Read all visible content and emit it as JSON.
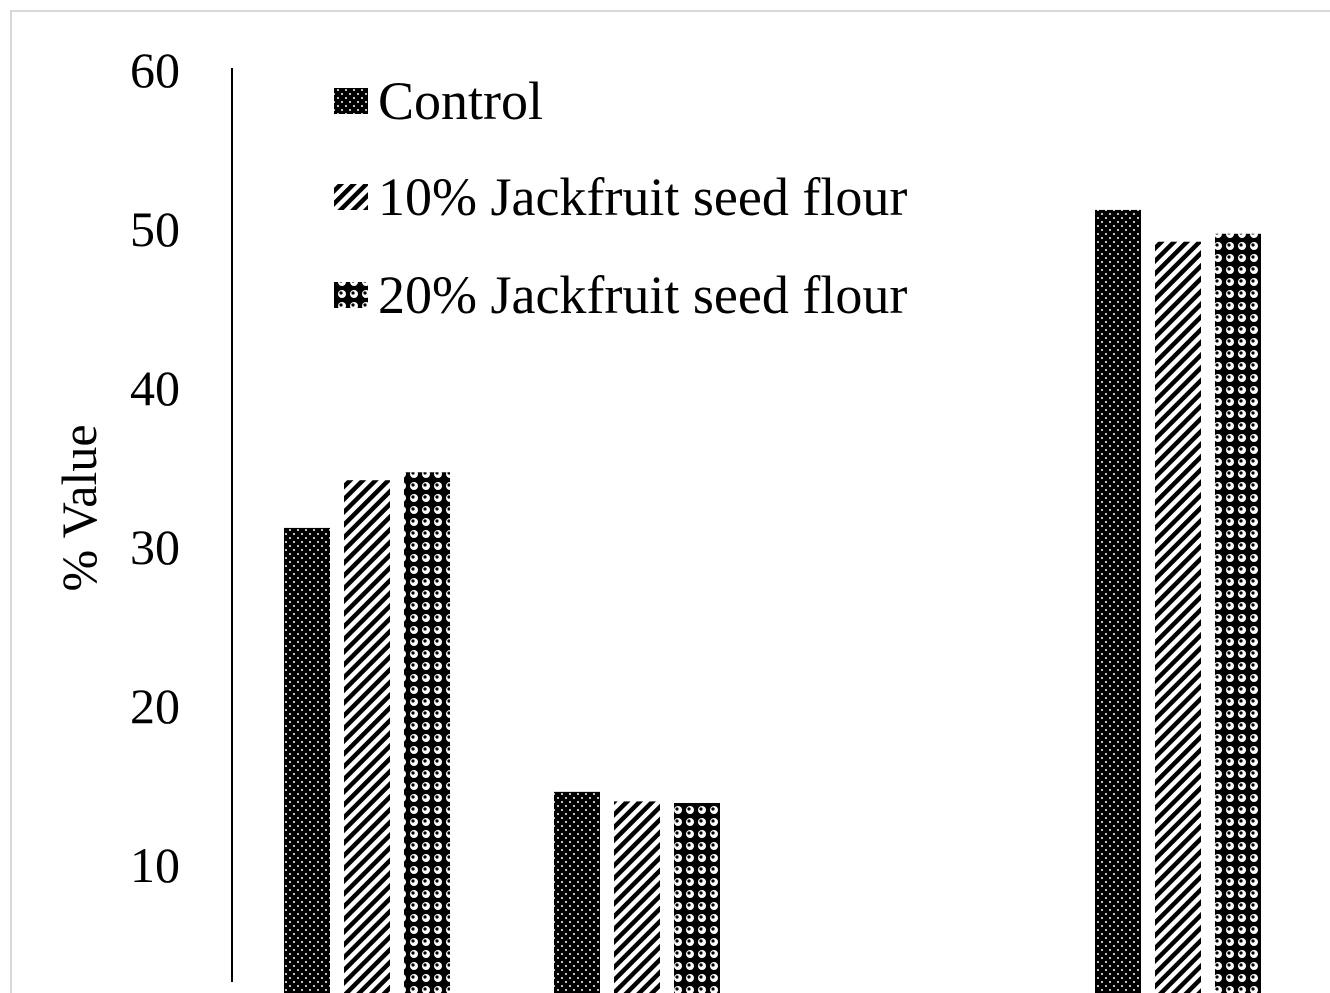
{
  "chart_data": {
    "type": "bar",
    "title": "",
    "xlabel": "",
    "ylabel": "% Value",
    "ylim": [
      0,
      60
    ],
    "yticks": [
      "10",
      "20",
      "30",
      "40",
      "50",
      "60"
    ],
    "categories": [
      "",
      "",
      ""
    ],
    "series": [
      {
        "name": "Control",
        "values": [
          31.2,
          14.6,
          51.2
        ],
        "pattern": "dots-dark"
      },
      {
        "name": "10% Jackfruit seed flour",
        "values": [
          34.2,
          14.0,
          49.2
        ],
        "pattern": "diagonal"
      },
      {
        "name": "20% Jackfruit seed flour",
        "values": [
          34.7,
          13.9,
          49.7
        ],
        "pattern": "circles"
      }
    ],
    "legend_position": "top-left",
    "grid": false
  },
  "colors": {
    "ink": "#000000",
    "paper": "#ffffff",
    "frame": "#d9d9d9"
  }
}
